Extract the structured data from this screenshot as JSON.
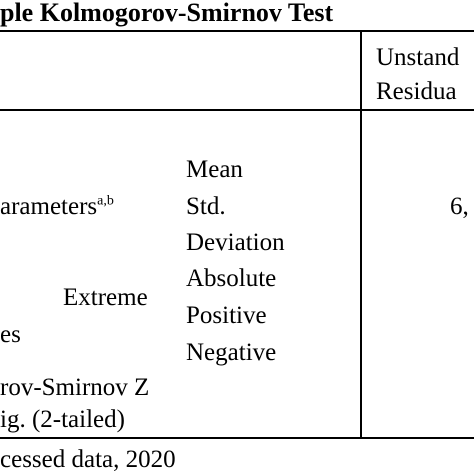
{
  "table": {
    "title": "ple Kolmogorov-Smirnov Test",
    "header": {
      "col_unstd_line1": "Unstand",
      "col_unstd_line2": "Residua"
    },
    "rows": {
      "normal_params_label": "arameters",
      "normal_params_sup": "a,b",
      "mean_label": "Mean",
      "std_label_line1": "Std.",
      "std_label_line2": "Deviation",
      "extreme_label": "Extreme",
      "differences_label": "es",
      "absolute_label": "Absolute",
      "positive_label": "Positive",
      "negative_label": "Negative",
      "ks_z_label": "rov-Smirnov Z",
      "sig_label": "ig. (2-tailed)",
      "std_value": "6,"
    },
    "footnote": "cessed data, 2020"
  }
}
